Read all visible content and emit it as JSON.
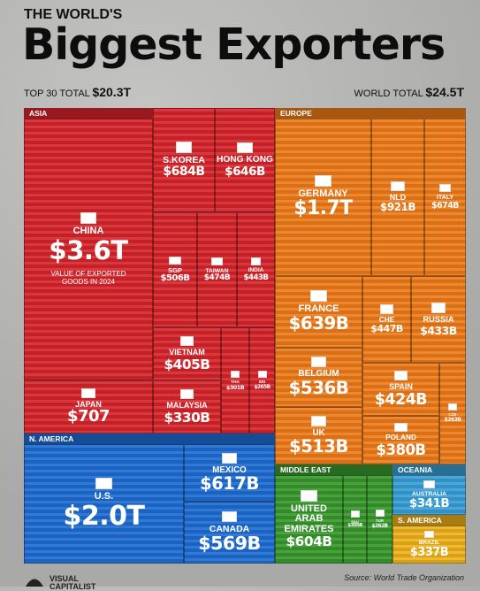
{
  "chart_data": {
    "type": "treemap",
    "subtitle": "THE WORLD'S",
    "title": "Biggest Exporters",
    "top_total": {
      "label": "TOP 30 TOTAL",
      "value": 20300,
      "value_label": "$20.3T"
    },
    "world_total": {
      "label": "WORLD TOTAL",
      "value": 24500,
      "value_label": "$24.5T"
    },
    "annotation": "VALUE OF EXPORTED GOODS IN 2024",
    "source": "Source: World Trade Organization",
    "brand": "VISUAL CAPITALIST",
    "groups": [
      {
        "name": "ASIA",
        "color": "#d8262b",
        "categories": [
          "CHINA",
          "JAPAN",
          "S.KOREA",
          "HONG KONG",
          "SGP",
          "TAIWAN",
          "INDIA",
          "VIETNAM",
          "MALAYSIA",
          "THA",
          "IDN"
        ],
        "values": [
          3600,
          707,
          684,
          646,
          506,
          474,
          443,
          405,
          330,
          301,
          265
        ],
        "value_labels": [
          "$3.6T",
          "$707",
          "$684B",
          "$646B",
          "$506B",
          "$474B",
          "$443B",
          "$405B",
          "$330B",
          "$301B",
          "$265B"
        ]
      },
      {
        "name": "EUROPE",
        "color": "#ef7d1a",
        "categories": [
          "GERMANY",
          "NLD",
          "ITALY",
          "FRANCE",
          "CHE",
          "RUSSIA",
          "BELGIUM",
          "UK",
          "SPAIN",
          "POLAND",
          "CZE"
        ],
        "values": [
          1700,
          921,
          674,
          639,
          447,
          433,
          536,
          513,
          424,
          380,
          263
        ],
        "value_labels": [
          "$1.7T",
          "$921B",
          "$674B",
          "$639B",
          "$447B",
          "$433B",
          "$536B",
          "$513B",
          "$424B",
          "$380B",
          "$263B"
        ]
      },
      {
        "name": "N. AMERICA",
        "color": "#1f6ed6",
        "categories": [
          "U.S.",
          "MEXICO",
          "CANADA"
        ],
        "values": [
          2000,
          617,
          569
        ],
        "value_labels": [
          "$2.0T",
          "$617B",
          "$569B"
        ]
      },
      {
        "name": "MIDDLE EAST",
        "color": "#3a9a2e",
        "categories": [
          "UNITED ARAB EMIRATES",
          "SAU",
          "TUR"
        ],
        "values": [
          604,
          305,
          262
        ],
        "value_labels": [
          "$604B",
          "$305B",
          "$262B"
        ]
      },
      {
        "name": "OCEANIA",
        "color": "#3a9fd8",
        "categories": [
          "AUSTRALIA"
        ],
        "values": [
          341
        ],
        "value_labels": [
          "$341B"
        ]
      },
      {
        "name": "S. AMERICA",
        "color": "#f0b31c",
        "categories": [
          "BRAZIL"
        ],
        "values": [
          337
        ],
        "value_labels": [
          "$337B"
        ]
      }
    ]
  }
}
